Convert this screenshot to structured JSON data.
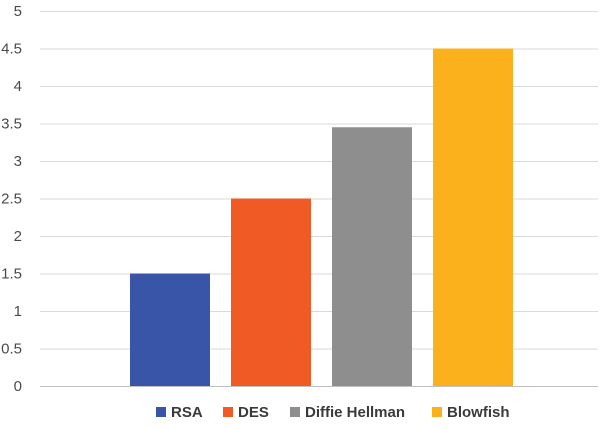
{
  "chart_data": {
    "type": "bar",
    "title": "",
    "xlabel": "",
    "ylabel": "",
    "categories": [
      "RSA",
      "DES",
      "Diffie Hellman",
      "Blowfish"
    ],
    "values": [
      1.5,
      2.5,
      3.45,
      4.5
    ],
    "colors": [
      "#3955a8",
      "#f05a24",
      "#8e8e8e",
      "#fbb11b"
    ],
    "ylim": [
      0,
      5
    ],
    "yticks": [
      "0",
      "0.5",
      "1",
      "1.5",
      "2",
      "2.5",
      "3",
      "3.5",
      "4",
      "4.5",
      "5"
    ],
    "grid": true,
    "legend_position": "bottom",
    "legend": [
      "RSA",
      "DES",
      "Diffie Hellman",
      "Blowfish"
    ]
  }
}
